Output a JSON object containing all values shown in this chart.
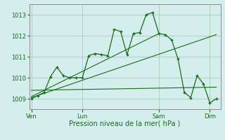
{
  "background_color": "#d4eeee",
  "grid_color": "#a0c8a0",
  "line_color": "#1a6b1a",
  "xlabel": "Pression niveau de la mer( hPa )",
  "ylim": [
    1008.5,
    1013.5
  ],
  "yticks": [
    1009,
    1010,
    1011,
    1012,
    1013
  ],
  "xtick_labels": [
    "Ven",
    "Lun",
    "Sam",
    "Dim"
  ],
  "xtick_positions": [
    0,
    48,
    120,
    168
  ],
  "xlim": [
    -2,
    178
  ],
  "main_line": [
    [
      0,
      1009.0
    ],
    [
      6,
      1009.15
    ],
    [
      12,
      1009.3
    ],
    [
      18,
      1010.05
    ],
    [
      24,
      1010.5
    ],
    [
      30,
      1010.1
    ],
    [
      36,
      1010.0
    ],
    [
      42,
      1010.0
    ],
    [
      48,
      1010.0
    ],
    [
      54,
      1011.05
    ],
    [
      60,
      1011.15
    ],
    [
      66,
      1011.1
    ],
    [
      72,
      1011.05
    ],
    [
      78,
      1012.3
    ],
    [
      84,
      1012.2
    ],
    [
      90,
      1011.1
    ],
    [
      96,
      1012.1
    ],
    [
      102,
      1012.15
    ],
    [
      108,
      1013.0
    ],
    [
      114,
      1013.1
    ],
    [
      120,
      1012.1
    ],
    [
      126,
      1012.05
    ],
    [
      132,
      1011.8
    ],
    [
      138,
      1010.9
    ],
    [
      144,
      1009.3
    ],
    [
      150,
      1009.05
    ],
    [
      156,
      1010.1
    ],
    [
      162,
      1009.7
    ],
    [
      168,
      1008.8
    ],
    [
      174,
      1009.0
    ]
  ],
  "trend_line1": [
    [
      0,
      1009.05
    ],
    [
      174,
      1012.05
    ]
  ],
  "trend_line2": [
    [
      0,
      1009.4
    ],
    [
      174,
      1009.55
    ]
  ],
  "trend_line3": [
    [
      0,
      1009.1
    ],
    [
      120,
      1012.1
    ]
  ]
}
